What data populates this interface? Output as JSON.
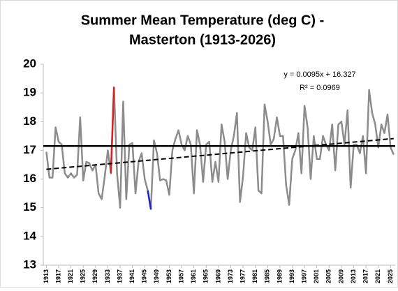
{
  "chart_data": {
    "type": "line",
    "title": [
      "Summer Mean Temperature (deg C) -",
      "Masterton (1913-2026)"
    ],
    "annotations": [
      "y = 0.0095x + 16.327",
      "R² = 0.0969"
    ],
    "x": [
      1913,
      1914,
      1915,
      1916,
      1917,
      1918,
      1919,
      1920,
      1921,
      1922,
      1923,
      1924,
      1925,
      1926,
      1927,
      1928,
      1929,
      1930,
      1931,
      1932,
      1933,
      1934,
      1935,
      1936,
      1937,
      1938,
      1939,
      1940,
      1941,
      1942,
      1943,
      1944,
      1945,
      1946,
      1947,
      1948,
      1949,
      1950,
      1951,
      1952,
      1953,
      1954,
      1955,
      1956,
      1957,
      1958,
      1959,
      1960,
      1961,
      1962,
      1963,
      1964,
      1965,
      1966,
      1967,
      1968,
      1969,
      1970,
      1971,
      1972,
      1973,
      1974,
      1975,
      1976,
      1977,
      1978,
      1979,
      1980,
      1981,
      1982,
      1983,
      1984,
      1985,
      1986,
      1987,
      1988,
      1989,
      1990,
      1991,
      1992,
      1993,
      1994,
      1995,
      1996,
      1997,
      1998,
      1999,
      2000,
      2001,
      2002,
      2003,
      2004,
      2005,
      2006,
      2007,
      2008,
      2009,
      2010,
      2011,
      2012,
      2013,
      2014,
      2015,
      2016,
      2017,
      2018,
      2019,
      2020,
      2021,
      2022,
      2023,
      2024,
      2025,
      2026
    ],
    "series": [
      {
        "color": "#8c8c8c",
        "values": [
          16.95,
          16.05,
          16.05,
          17.8,
          17.3,
          17.2,
          16.2,
          16.05,
          16.2,
          16.05,
          16.15,
          18.15,
          15.95,
          16.6,
          16.55,
          16.3,
          16.5,
          15.5,
          15.3,
          16.1,
          17.0,
          16.2,
          19.2,
          16.2,
          15.0,
          18.7,
          15.3,
          17.2,
          17.25,
          15.5,
          16.6,
          16.9,
          16.0,
          15.6,
          14.95,
          17.35,
          16.9,
          15.95,
          16.0,
          15.95,
          15.45,
          17.0,
          17.4,
          17.7,
          17.2,
          17.0,
          17.5,
          17.2,
          15.5,
          17.7,
          17.2,
          15.9,
          17.2,
          17.3,
          15.9,
          16.6,
          15.9,
          17.9,
          17.3,
          16.0,
          17.0,
          17.5,
          18.3,
          15.2,
          16.1,
          17.6,
          17.1,
          17.0,
          17.8,
          15.6,
          15.5,
          18.6,
          18.0,
          17.2,
          17.4,
          18.15,
          17.5,
          17.5,
          15.8,
          15.1,
          16.7,
          17.0,
          17.6,
          16.2,
          18.55,
          17.8,
          16.0,
          17.5,
          16.7,
          16.7,
          17.5,
          17.2,
          17.0,
          17.9,
          16.3,
          17.9,
          18.0,
          17.2,
          18.4,
          15.7,
          17.2,
          17.2,
          16.9,
          17.5,
          16.2,
          19.1,
          18.3,
          17.9,
          17.1,
          17.9,
          17.6,
          18.25,
          17.1,
          16.85
        ]
      }
    ],
    "highlights": [
      {
        "color": "#e02020",
        "from": 1934,
        "to": 1935
      },
      {
        "color": "#2020d0",
        "from": 1946,
        "to": 1947
      }
    ],
    "mean_line": {
      "value": 17.15,
      "color": "#000000"
    },
    "trend_line": {
      "x": [
        1913,
        2026
      ],
      "values": [
        16.34,
        17.41
      ],
      "color": "#000000"
    },
    "xlim": [
      1912,
      2026.5
    ],
    "xticks": [
      1913,
      1917,
      1921,
      1925,
      1929,
      1933,
      1937,
      1941,
      1945,
      1949,
      1953,
      1957,
      1961,
      1965,
      1969,
      1973,
      1977,
      1981,
      1985,
      1989,
      1993,
      1997,
      2001,
      2005,
      2009,
      2013,
      2017,
      2021,
      2025
    ],
    "ylim": [
      13,
      20
    ],
    "yticks": [
      13,
      14,
      15,
      16,
      17,
      18,
      19,
      20
    ],
    "grid": false
  }
}
